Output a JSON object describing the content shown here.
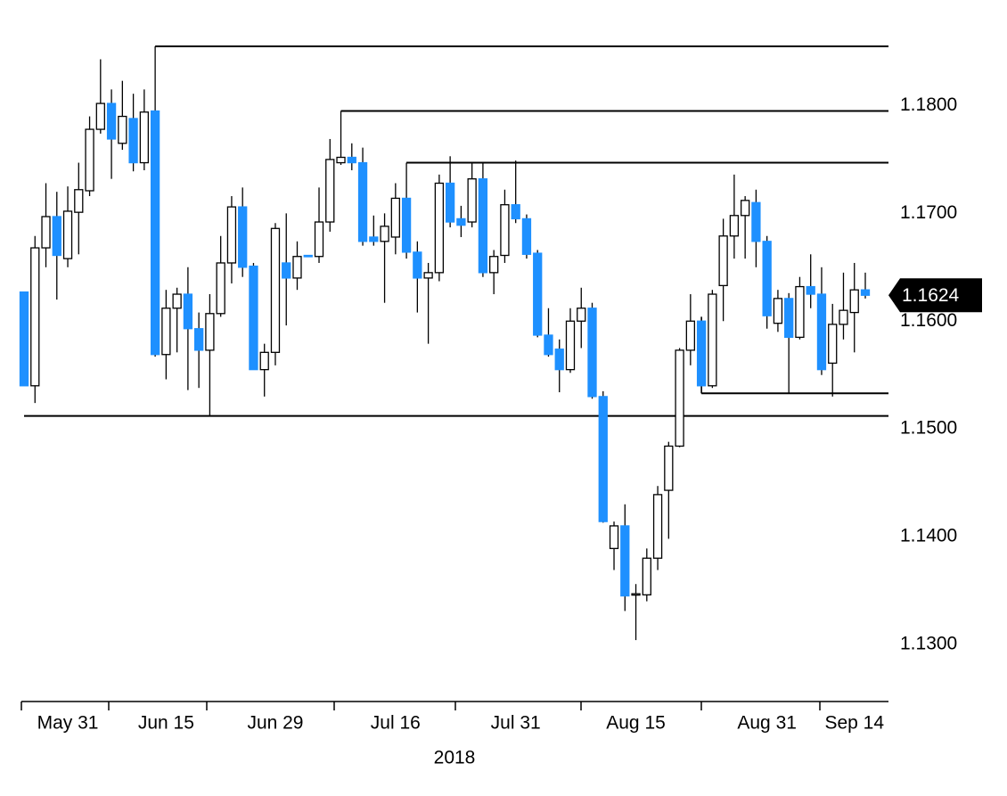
{
  "chart_data": {
    "type": "candlestick",
    "categories": [
      null,
      null,
      null,
      null,
      "May 31",
      null,
      null,
      null,
      null,
      null,
      null,
      null,
      null,
      "Jun 15",
      null,
      null,
      null,
      null,
      null,
      null,
      null,
      null,
      null,
      "Jun 29",
      null,
      null,
      null,
      null,
      null,
      null,
      null,
      null,
      null,
      null,
      "Jul 16",
      null,
      null,
      null,
      null,
      null,
      null,
      null,
      null,
      null,
      null,
      "Jul 31",
      null,
      null,
      null,
      null,
      null,
      null,
      null,
      null,
      null,
      null,
      "Aug 15",
      null,
      null,
      null,
      null,
      null,
      null,
      null,
      null,
      null,
      null,
      null,
      "Aug 31",
      null,
      null,
      null,
      null,
      null,
      null,
      null,
      "Sep 14",
      null
    ],
    "open": [
      1.1627,
      1.154,
      1.1668,
      1.1697,
      1.1658,
      1.1701,
      1.1721,
      1.1778,
      1.1802,
      1.1765,
      1.1788,
      1.1747,
      1.1795,
      1.1569,
      1.1612,
      1.1625,
      1.1593,
      1.1573,
      1.1607,
      1.1654,
      1.1706,
      1.1651,
      1.1555,
      1.1571,
      1.1654,
      1.164,
      1.1661,
      1.166,
      1.1692,
      1.1747,
      1.1752,
      1.1747,
      1.1678,
      1.1674,
      1.1678,
      1.1714,
      1.1664,
      1.164,
      1.1645,
      1.1728,
      1.1695,
      1.1692,
      1.1732,
      1.1645,
      1.1661,
      1.1708,
      1.1695,
      1.1663,
      1.1587,
      1.1574,
      1.1555,
      1.16,
      1.1612,
      1.153,
      1.1389,
      1.141,
      1.1346,
      1.1346,
      1.138,
      1.1443,
      1.1484,
      1.1573,
      1.16,
      1.154,
      1.1633,
      1.1679,
      1.1698,
      1.171,
      1.1674,
      1.1598,
      1.1621,
      1.1585,
      1.1632,
      1.1625,
      1.1561,
      1.1597,
      1.1608,
      1.1629
    ],
    "high": [
      1.1627,
      1.1679,
      1.1728,
      1.172,
      1.1725,
      1.1747,
      1.179,
      1.1843,
      1.1815,
      1.1823,
      1.1811,
      1.1815,
      1.1855,
      1.1629,
      1.1631,
      1.165,
      1.1608,
      1.1625,
      1.1679,
      1.1716,
      1.1724,
      1.1654,
      1.1579,
      1.1691,
      1.17,
      1.1674,
      1.1661,
      1.1724,
      1.1769,
      1.1795,
      1.1765,
      1.1761,
      1.1698,
      1.17,
      1.1728,
      1.1747,
      1.1674,
      1.1654,
      1.1736,
      1.1753,
      1.1707,
      1.1747,
      1.1747,
      1.1666,
      1.1722,
      1.1749,
      1.1699,
      1.1666,
      1.1612,
      1.1583,
      1.1612,
      1.1631,
      1.1617,
      1.1535,
      1.1414,
      1.143,
      1.1356,
      1.1389,
      1.1447,
      1.1488,
      1.1575,
      1.1625,
      1.1604,
      1.1629,
      1.1695,
      1.1736,
      1.1716,
      1.1722,
      1.1679,
      1.1629,
      1.1626,
      1.1641,
      1.1662,
      1.165,
      1.1616,
      1.1645,
      1.1654,
      1.1645
    ],
    "low": [
      1.154,
      1.1524,
      1.165,
      1.162,
      1.165,
      1.1662,
      1.1716,
      1.1774,
      1.1732,
      1.1759,
      1.1739,
      1.174,
      1.1567,
      1.1546,
      1.1571,
      1.1536,
      1.1538,
      1.1512,
      1.1604,
      1.1635,
      1.1641,
      1.1555,
      1.153,
      1.1559,
      1.1596,
      1.1629,
      1.166,
      1.1654,
      1.1683,
      1.1745,
      1.174,
      1.167,
      1.167,
      1.1617,
      1.1662,
      1.1658,
      1.1608,
      1.1579,
      1.1637,
      1.1687,
      1.1678,
      1.1687,
      1.1641,
      1.1625,
      1.1654,
      1.1691,
      1.1658,
      1.1585,
      1.1567,
      1.1534,
      1.1552,
      1.1575,
      1.1528,
      1.1413,
      1.1369,
      1.1331,
      1.1304,
      1.134,
      1.1369,
      1.1398,
      1.1483,
      1.1559,
      1.1533,
      1.1538,
      1.16,
      1.1658,
      1.1658,
      1.165,
      1.1593,
      1.159,
      1.1533,
      1.1583,
      1.1612,
      1.155,
      1.153,
      1.1583,
      1.1571,
      1.1621
    ],
    "close": [
      1.154,
      1.1668,
      1.1697,
      1.1661,
      1.1702,
      1.1722,
      1.1778,
      1.1802,
      1.1769,
      1.179,
      1.1747,
      1.1794,
      1.1569,
      1.1612,
      1.1625,
      1.1593,
      1.1573,
      1.1607,
      1.1654,
      1.1706,
      1.165,
      1.1555,
      1.1571,
      1.1686,
      1.164,
      1.166,
      1.166,
      1.1692,
      1.175,
      1.1752,
      1.1747,
      1.1674,
      1.1674,
      1.1688,
      1.1714,
      1.1664,
      1.164,
      1.1645,
      1.1728,
      1.1692,
      1.1689,
      1.1732,
      1.1645,
      1.166,
      1.1708,
      1.1695,
      1.1662,
      1.1587,
      1.1569,
      1.1555,
      1.16,
      1.1612,
      1.153,
      1.1414,
      1.141,
      1.1345,
      1.1347,
      1.138,
      1.1439,
      1.1484,
      1.1573,
      1.16,
      1.154,
      1.1625,
      1.1679,
      1.1698,
      1.1712,
      1.1674,
      1.1605,
      1.1621,
      1.1585,
      1.1632,
      1.1625,
      1.1555,
      1.1597,
      1.161,
      1.1629,
      1.1624
    ],
    "up_color": "#ffffff",
    "down_color": "#1e90ff",
    "levels": [
      {
        "value": 1.1855,
        "start": 12
      },
      {
        "value": 1.1795,
        "start": 29
      },
      {
        "value": 1.1747,
        "start": 35
      },
      {
        "value": 1.1533,
        "start": 62
      },
      {
        "value": 1.1512,
        "start": 0
      }
    ],
    "last_price": 1.1624,
    "xlabel": "2018",
    "ylim": [
      1.1247,
      1.1898
    ],
    "yticks": [
      {
        "value": 1.18,
        "label": "1.1800"
      },
      {
        "value": 1.17,
        "label": "1.1700"
      },
      {
        "value": 1.16,
        "label": "1.1600"
      },
      {
        "value": 1.15,
        "label": "1.1500"
      },
      {
        "value": 1.14,
        "label": "1.1400"
      },
      {
        "value": 1.13,
        "label": "1.1300"
      }
    ]
  }
}
